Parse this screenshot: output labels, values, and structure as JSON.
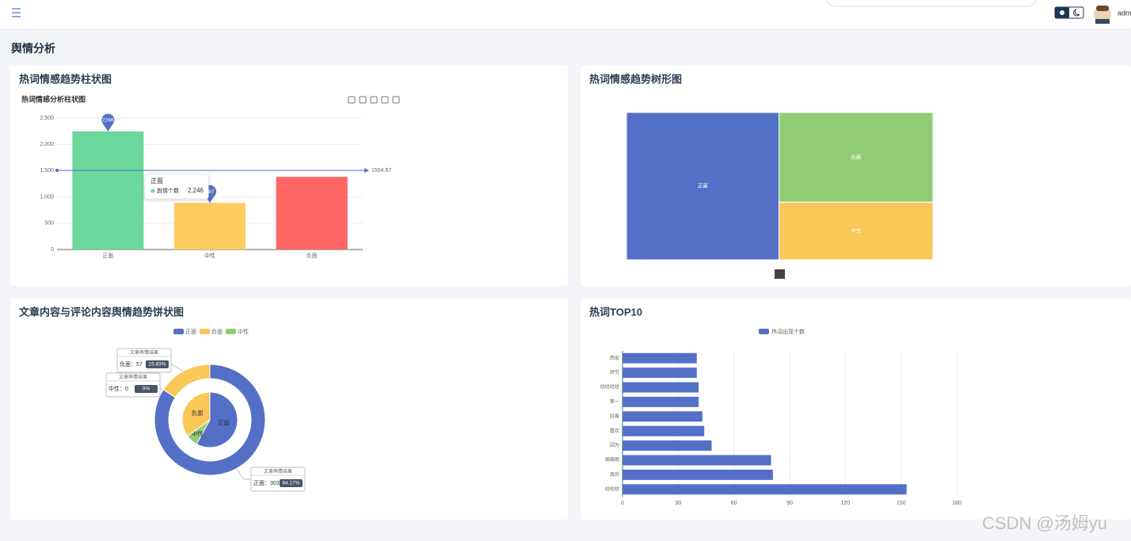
{
  "page_title": "舆情分析",
  "user": "admin",
  "watermark": "CSDN @汤姆yu",
  "chart_data": [
    {
      "type": "bar",
      "panel_title": "热词情感趋势柱状图",
      "title": "热词情感分析柱状图",
      "categories": [
        "正面",
        "中性",
        "负面"
      ],
      "values": [
        2246,
        887,
        1381
      ],
      "colors": [
        "#6cd89b",
        "#fdcd60",
        "#fe6565"
      ],
      "ylim": [
        0,
        2500
      ],
      "yticks": [
        0,
        500,
        {
          "value": 1000,
          "label": "1,000"
        },
        {
          "value": 1500,
          "label": "1,500"
        },
        {
          "value": 2000,
          "label": "2,000"
        },
        {
          "value": 2500,
          "label": "2,500"
        }
      ],
      "grid": true,
      "mark_line": 1504.67,
      "tooltip": {
        "category": "正面",
        "series": "舆情个数",
        "value": 2246,
        "label": "2,246"
      }
    },
    {
      "type": "treemap",
      "panel_title": "热词情感趋势树形图",
      "names": [
        "正面",
        "负面",
        "中性"
      ],
      "values": [
        2246,
        1381,
        887
      ],
      "colors": [
        "#5470c6",
        "#91cc75",
        "#fac858"
      ]
    },
    {
      "type": "pie",
      "panel_title": "文章内容与评论内容舆情趋势饼状图",
      "legend": [
        {
          "name": "正面",
          "color": "#5470c6"
        },
        {
          "name": "负面",
          "color": "#fac858"
        },
        {
          "name": "中性",
          "color": "#91cc75"
        }
      ],
      "series": [
        {
          "name": "文章舆情结果",
          "categories": [
            "正面",
            "中性",
            "负面"
          ],
          "values": [
            303,
            0,
            57
          ],
          "value_labels": [
            "正面：303",
            "中性：0",
            "负面：57"
          ],
          "percents": [
            84.17,
            0,
            15.83
          ],
          "percent_labels": [
            "84.17%",
            "0%",
            "15.83%"
          ]
        },
        {
          "categories": [
            "正面",
            "中性",
            "负面"
          ],
          "values": [
            58,
            7,
            35
          ]
        }
      ]
    },
    {
      "type": "hbar",
      "panel_title": "热词TOP10",
      "series_name": "热词出现个数",
      "color": "#5470c6",
      "categories": [
        "哈哈哈",
        "真的",
        "啊啊啊",
        "因为",
        "喜欢",
        "好看",
        "第一",
        "哈哈哈哈",
        "研究",
        "西安"
      ],
      "values": [
        153,
        81,
        80,
        48,
        44,
        43,
        41,
        41,
        40,
        40
      ],
      "xlim": [
        0,
        180
      ],
      "xticks": [
        0,
        30,
        60,
        90,
        120,
        150,
        180
      ],
      "grid": true
    }
  ]
}
